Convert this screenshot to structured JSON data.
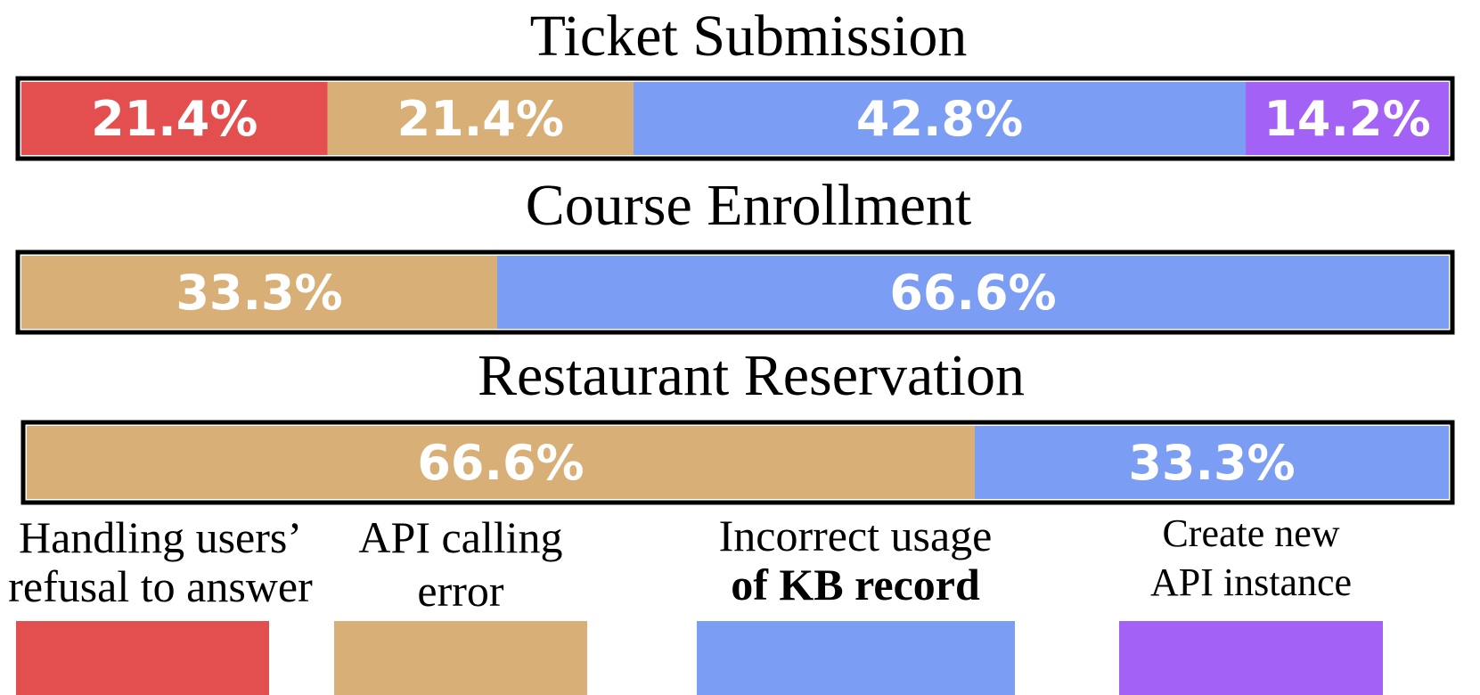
{
  "chart_data": {
    "type": "bar",
    "orientation": "horizontal-stacked-100",
    "categories": [
      "Handling users’ refusal to answer",
      "API calling error",
      "Incorrect usage of KB record",
      "Create new API instance"
    ],
    "legend": [
      {
        "key": "refusal",
        "lines": [
          "Handling users’",
          "refusal to answer"
        ],
        "bold_lines": [],
        "color": "#E34F4F"
      },
      {
        "key": "api_error",
        "lines": [
          "API calling",
          "error"
        ],
        "bold_lines": [],
        "color": "#D8B077"
      },
      {
        "key": "kb",
        "lines": [
          "Incorrect usage",
          "of KB record"
        ],
        "bold_lines": [
          1
        ],
        "color": "#7B9DF4"
      },
      {
        "key": "new_api",
        "lines": [
          "Create new",
          "API instance"
        ],
        "bold_lines": [],
        "color": "#A362F5"
      }
    ],
    "bars": [
      {
        "title": "Ticket Submission",
        "segments": [
          {
            "key": "refusal",
            "value": 21.4,
            "label": "21.4%"
          },
          {
            "key": "api_error",
            "value": 21.4,
            "label": "21.4%"
          },
          {
            "key": "kb",
            "value": 42.8,
            "label": "42.8%"
          },
          {
            "key": "new_api",
            "value": 14.2,
            "label": "14.2%"
          }
        ]
      },
      {
        "title": "Course Enrollment",
        "segments": [
          {
            "key": "api_error",
            "value": 33.3,
            "label": "33.3%"
          },
          {
            "key": "kb",
            "value": 66.6,
            "label": "66.6%"
          }
        ]
      },
      {
        "title": "Restaurant Reservation",
        "segments": [
          {
            "key": "api_error",
            "value": 66.6,
            "label": "66.6%"
          },
          {
            "key": "kb",
            "value": 33.3,
            "label": "33.3%"
          }
        ]
      }
    ],
    "value_unit": "%",
    "grid": false,
    "legend_position": "bottom"
  }
}
